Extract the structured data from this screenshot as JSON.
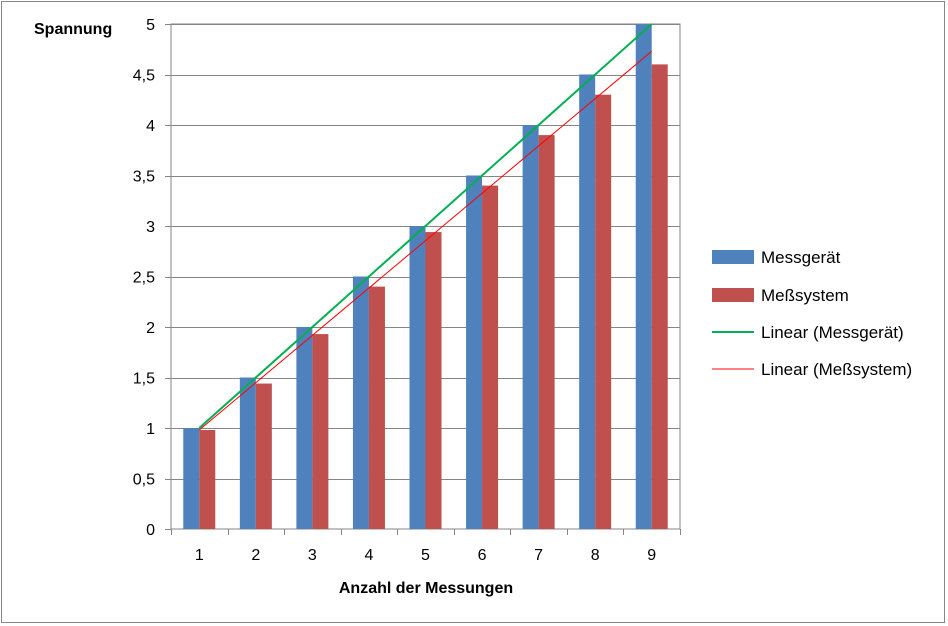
{
  "chart_data": {
    "type": "bar",
    "title": "",
    "xlabel": "Anzahl der Messungen",
    "ylabel": "Spannung",
    "categories": [
      "1",
      "2",
      "3",
      "4",
      "5",
      "6",
      "7",
      "8",
      "9"
    ],
    "ylim": [
      0,
      5
    ],
    "yticks": [
      "0",
      "0,5",
      "1",
      "1,5",
      "2",
      "2,5",
      "3",
      "3,5",
      "4",
      "4,5",
      "5"
    ],
    "grid": true,
    "legend_position": "right",
    "series": [
      {
        "name": "Messgerät",
        "type": "bar",
        "color": "#4F81BD",
        "values": [
          1,
          1.5,
          2,
          2.5,
          3,
          3.5,
          4,
          4.5,
          5
        ]
      },
      {
        "name": "Meßsystem",
        "type": "bar",
        "color": "#C0504D",
        "values": [
          0.98,
          1.44,
          1.93,
          2.4,
          2.94,
          3.4,
          3.9,
          4.3,
          4.6
        ]
      }
    ],
    "trendlines": [
      {
        "name": "Linear (Messgerät)",
        "type": "linear",
        "color": "#00B050",
        "start": 1,
        "end": 5
      },
      {
        "name": "Linear (Meßsystem)",
        "type": "linear",
        "color": "#FF0000",
        "start": 0.98,
        "end": 4.73
      }
    ]
  }
}
